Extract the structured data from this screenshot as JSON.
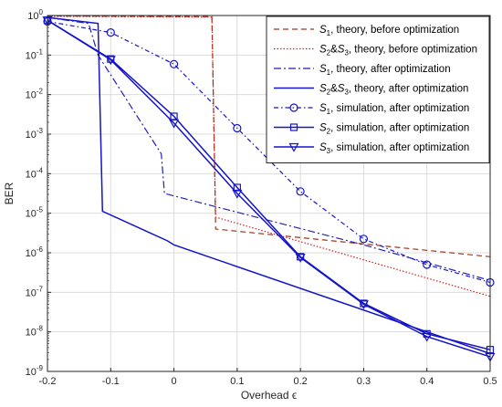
{
  "chart_data": {
    "type": "line",
    "xlabel": "Overhead ϵ",
    "ylabel": "BER",
    "xlim": [
      -0.2,
      0.5
    ],
    "ylim_exp": [
      -9,
      0
    ],
    "yscale": "log",
    "grid": true,
    "legend_position": "top-right",
    "xticks": [
      "-0.2",
      "-0.1",
      "0",
      "0.1",
      "0.2",
      "0.3",
      "0.4",
      "0.5"
    ],
    "xtick_values": [
      -0.2,
      -0.1,
      0,
      0.1,
      0.2,
      0.3,
      0.4,
      0.5
    ],
    "yticks": [
      {
        "base": "10",
        "exp": "0",
        "value": 0
      },
      {
        "base": "10",
        "exp": "-1",
        "value": -1
      },
      {
        "base": "10",
        "exp": "-2",
        "value": -2
      },
      {
        "base": "10",
        "exp": "-3",
        "value": -3
      },
      {
        "base": "10",
        "exp": "-4",
        "value": -4
      },
      {
        "base": "10",
        "exp": "-5",
        "value": -5
      },
      {
        "base": "10",
        "exp": "-6",
        "value": -6
      },
      {
        "base": "10",
        "exp": "-7",
        "value": -7
      },
      {
        "base": "10",
        "exp": "-8",
        "value": -8
      },
      {
        "base": "10",
        "exp": "-9",
        "value": -9
      }
    ],
    "series": [
      {
        "sym": "S",
        "sub": "1",
        "rest": ", theory, before optimization",
        "color": "#a0361c",
        "dash": "6,4",
        "width": 1.2,
        "marker": "none",
        "points": [
          [
            -0.2,
            -0.01
          ],
          [
            0.06,
            -0.03
          ],
          [
            0.066,
            -5.4
          ],
          [
            0.5,
            -6.1
          ]
        ]
      },
      {
        "sym": "S",
        "sub": "2",
        "amp": "&",
        "sym2": "S",
        "sub2": "3",
        "rest": ", theory, before optimization",
        "color": "#d32020",
        "dash": "1.5,2",
        "width": 1.2,
        "marker": "none",
        "points": [
          [
            -0.2,
            -0.02
          ],
          [
            0.06,
            -0.04
          ],
          [
            0.066,
            -5.1
          ],
          [
            0.5,
            -7.1
          ]
        ]
      },
      {
        "sym": "S",
        "sub": "1",
        "rest": ", theory, after optimization",
        "color": "#1f1fbf",
        "dash": "8,3,2,3",
        "width": 1.2,
        "marker": "none",
        "points": [
          [
            -0.2,
            -0.05
          ],
          [
            -0.135,
            -0.2
          ],
          [
            -0.12,
            -1.0
          ],
          [
            -0.02,
            -3.5
          ],
          [
            -0.015,
            -4.5
          ],
          [
            0.3,
            -5.8
          ],
          [
            0.5,
            -6.7
          ]
        ]
      },
      {
        "sym": "S",
        "sub": "2",
        "amp": "&",
        "sym2": "S",
        "sub2": "3",
        "rest": ", theory, after optimization",
        "color": "#1414c8",
        "dash": "",
        "width": 1.5,
        "marker": "none",
        "points": [
          [
            -0.2,
            -0.05
          ],
          [
            -0.12,
            -0.2
          ],
          [
            -0.113,
            -4.95
          ],
          [
            -0.01,
            -5.7
          ],
          [
            0.0,
            -5.8
          ],
          [
            0.5,
            -8.55
          ]
        ]
      },
      {
        "sym": "S",
        "sub": "1",
        "rest": ", simulation, after optimization",
        "color": "#1414c8",
        "dash": "5,3,1.5,3",
        "width": 1.2,
        "marker": "circle",
        "points": [
          [
            -0.2,
            -0.15
          ],
          [
            -0.1,
            -0.43
          ],
          [
            0,
            -1.23
          ],
          [
            0.1,
            -2.85
          ],
          [
            0.2,
            -4.45
          ],
          [
            0.3,
            -5.65
          ],
          [
            0.4,
            -6.3
          ],
          [
            0.5,
            -6.75
          ]
        ]
      },
      {
        "sym": "S",
        "sub": "2",
        "rest": ", simulation, after optimization",
        "color": "#1414c8",
        "dash": "",
        "width": 1.5,
        "marker": "square",
        "points": [
          [
            -0.2,
            -0.12
          ],
          [
            -0.1,
            -1.1
          ],
          [
            0,
            -2.55
          ],
          [
            0.1,
            -4.35
          ],
          [
            0.2,
            -6.1
          ],
          [
            0.3,
            -7.28
          ],
          [
            0.4,
            -8.05
          ],
          [
            0.5,
            -8.45
          ]
        ]
      },
      {
        "sym": "S",
        "sub": "3",
        "rest": ", simulation, after optimization",
        "color": "#1414c8",
        "dash": "",
        "width": 1.5,
        "marker": "triangle",
        "points": [
          [
            -0.2,
            -0.12
          ],
          [
            -0.1,
            -1.12
          ],
          [
            0,
            -2.72
          ],
          [
            0.1,
            -4.5
          ],
          [
            0.2,
            -6.12
          ],
          [
            0.3,
            -7.3
          ],
          [
            0.4,
            -8.12
          ],
          [
            0.5,
            -8.63
          ]
        ]
      }
    ]
  }
}
